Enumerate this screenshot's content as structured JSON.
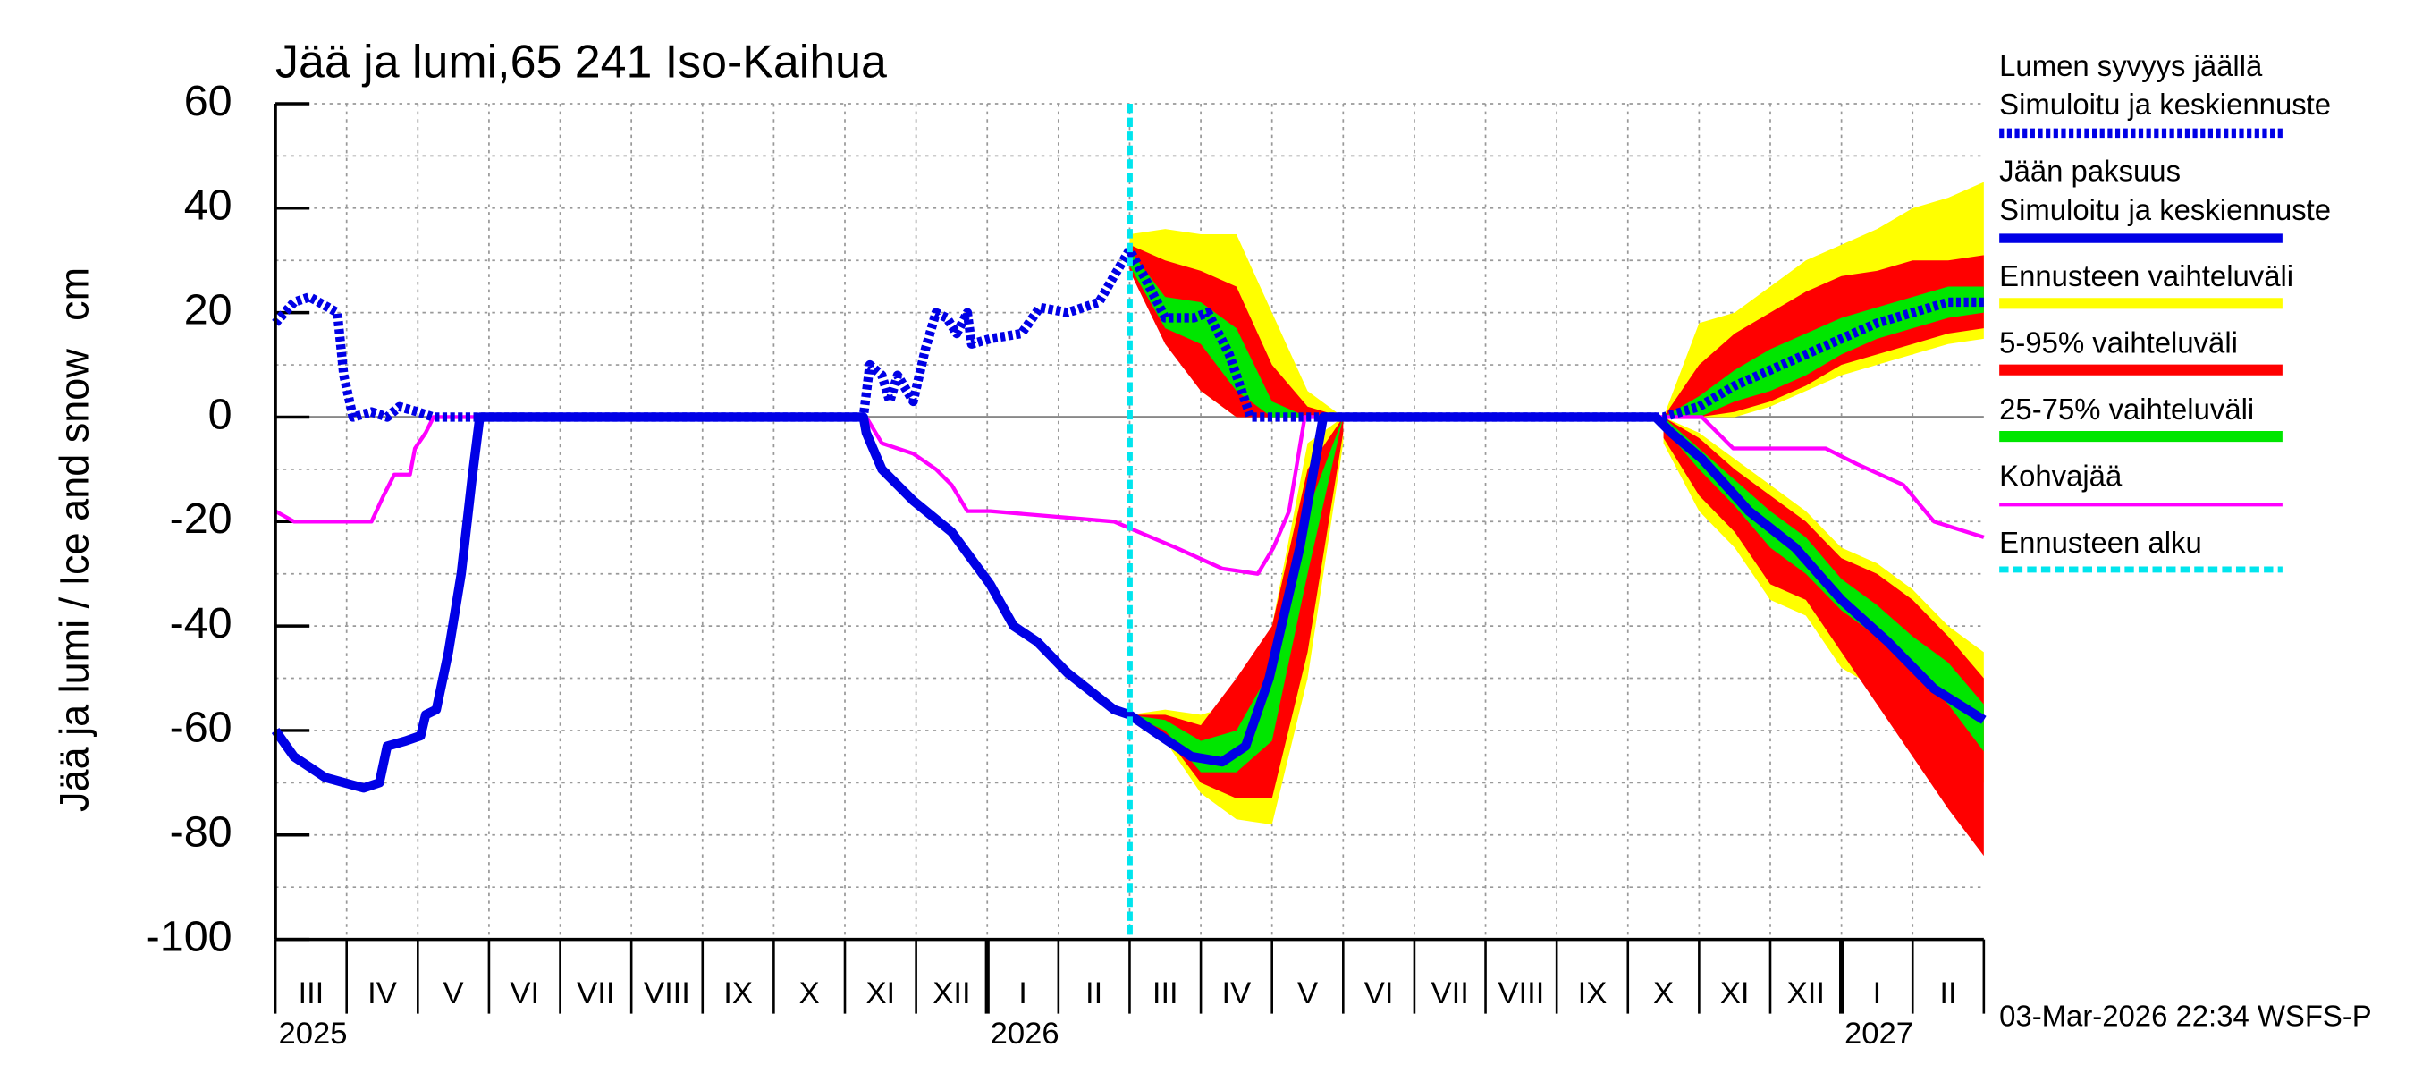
{
  "chart_data": {
    "type": "line",
    "title": "Jää ja lumi,65 241 Iso-Kaihua",
    "ylabel": "Jää ja lumi / Ice and snow",
    "yunit": "cm",
    "months": [
      "III",
      "IV",
      "V",
      "VI",
      "VII",
      "VIII",
      "IX",
      "X",
      "XI",
      "XII",
      "I",
      "II",
      "III",
      "IV",
      "V",
      "VI",
      "VII",
      "VIII",
      "IX",
      "X",
      "XI",
      "XII",
      "I",
      "II"
    ],
    "years": [
      "2025",
      "2026",
      "2027"
    ],
    "xlim": [
      0,
      24
    ],
    "ylim": [
      -100,
      60
    ],
    "yticks": [
      -100,
      -80,
      -60,
      -40,
      -20,
      0,
      20,
      40,
      60
    ],
    "y_minor_ticks": [
      -90,
      -70,
      -50,
      -30,
      -10,
      10,
      30,
      50
    ],
    "grid": true,
    "legend": "right",
    "timestamp": "03-Mar-2026 22:34 WSFS-P",
    "series": [
      {
        "name": "Lumen syvyys jäällä",
        "subname": "Simuloitu ja keskiennuste",
        "color": "#0000e6",
        "style": "dotted",
        "x": [
          0,
          0.26,
          0.48,
          0.74,
          0.87,
          0.96,
          1.09,
          1.35,
          1.57,
          1.74,
          2,
          2.22,
          8.26,
          8.35,
          8.52,
          8.63,
          8.74,
          8.96,
          9.13,
          9.28,
          9.43,
          9.57,
          9.72,
          9.78,
          10.04,
          10.48,
          10.74,
          11.13,
          11.57,
          11.78,
          12,
          12.2,
          12.5,
          12.9,
          13.1,
          13.4,
          13.7,
          19.5,
          20,
          20.5,
          21,
          21.5,
          22,
          22.5,
          23,
          23.5,
          24
        ],
        "values": [
          18,
          22,
          23,
          21,
          20,
          8,
          0,
          1,
          0,
          2,
          1,
          0,
          0,
          10,
          8,
          3,
          8,
          3,
          13,
          20,
          19,
          16,
          20,
          14,
          15,
          16,
          21,
          20,
          22,
          27,
          32,
          27,
          19,
          19,
          20,
          12,
          0,
          0,
          2,
          6,
          9,
          12,
          15,
          18,
          20,
          22,
          22
        ]
      },
      {
        "name": "Jään paksuus",
        "subname": "Simuloitu ja keskiennuste",
        "color": "#0000e6",
        "style": "solid",
        "x": [
          0,
          0.26,
          0.7,
          1.24,
          1.46,
          1.57,
          1.83,
          2.04,
          2.11,
          2.26,
          2.43,
          2.61,
          2.76,
          2.87,
          8.26,
          8.3,
          8.52,
          8.96,
          9.5,
          10.04,
          10.37,
          10.7,
          11.13,
          11.78,
          12,
          12.43,
          12.87,
          13.3,
          13.63,
          13.96,
          14.39,
          14.72,
          19.39,
          19.61,
          20.04,
          20.7,
          21.35,
          22,
          22.65,
          23.3,
          24
        ],
        "values": [
          -60,
          -65,
          -69,
          -71,
          -70,
          -63,
          -62,
          -61,
          -57,
          -56,
          -45,
          -30,
          -12,
          0,
          0,
          -3,
          -10,
          -16,
          -22,
          -32,
          -40,
          -43,
          -49,
          -56,
          -57,
          -61,
          -65,
          -66,
          -63,
          -50,
          -25,
          0,
          0,
          -3,
          -8,
          -18,
          -25,
          -35,
          -43,
          -52,
          -58
        ]
      },
      {
        "name": "Kohvajää",
        "color": "#ff00ff",
        "style": "thin",
        "x": [
          0,
          0.26,
          1.35,
          1.52,
          1.67,
          1.89,
          1.96,
          2.11,
          2.22,
          8.3,
          8.52,
          8.96,
          9.28,
          9.5,
          9.72,
          10.04,
          11.78,
          12.65,
          13.3,
          13.8,
          14.02,
          14.24,
          14.46,
          20.04,
          20.48,
          21.78,
          22.22,
          22.87,
          23.3,
          24
        ],
        "values": [
          -18,
          -20,
          -20,
          -15,
          -11,
          -11,
          -6,
          -3,
          0,
          0,
          -5,
          -7,
          -10,
          -13,
          -18,
          -18,
          -20,
          -25,
          -29,
          -30,
          -25,
          -18,
          0,
          0,
          -6,
          -6,
          -9,
          -13,
          -20,
          -23
        ]
      }
    ],
    "bands": [
      {
        "name": "Ennusteen vaihteluväli",
        "color": "#ffff00",
        "pieces": [
          {
            "x": [
              12,
              12.5,
              13,
              13.5,
              14,
              14.5,
              15
            ],
            "low": [
              30,
              15,
              5,
              0,
              0,
              0,
              0
            ],
            "high": [
              35,
              36,
              35,
              35,
              20,
              5,
              0
            ]
          },
          {
            "x": [
              19.5,
              20,
              20.5,
              21,
              21.5,
              22,
              22.5,
              23,
              23.5,
              24
            ],
            "low": [
              0,
              0,
              0,
              2,
              5,
              8,
              10,
              12,
              14,
              15
            ],
            "high": [
              0,
              18,
              20,
              25,
              30,
              33,
              36,
              40,
              42,
              45
            ]
          },
          {
            "x": [
              12,
              12.5,
              13,
              13.5,
              14,
              14.5,
              15
            ],
            "low": [
              -57,
              -62,
              -72,
              -77,
              -78,
              -50,
              -5
            ],
            "high": [
              -57,
              -56,
              -57,
              -55,
              -40,
              -5,
              0
            ]
          },
          {
            "x": [
              19.5,
              20,
              20.5,
              21,
              21.5,
              22,
              22.5,
              23,
              23.5,
              24
            ],
            "low": [
              -5,
              -18,
              -25,
              -35,
              -38,
              -48,
              -52,
              -60,
              -67,
              -70
            ],
            "high": [
              0,
              -3,
              -8,
              -13,
              -18,
              -25,
              -28,
              -33,
              -40,
              -45
            ]
          }
        ]
      },
      {
        "name": "5-95% vaihteluväli",
        "color": "#ff0000",
        "pieces": [
          {
            "x": [
              12,
              12.5,
              13,
              13.5,
              14,
              14.5,
              15
            ],
            "low": [
              28,
              14,
              5,
              0,
              0,
              0,
              0
            ],
            "high": [
              33,
              30,
              28,
              25,
              10,
              2,
              0
            ]
          },
          {
            "x": [
              19.5,
              20,
              20.5,
              21,
              21.5,
              22,
              22.5,
              23,
              23.5,
              24
            ],
            "low": [
              0,
              0,
              1,
              3,
              6,
              10,
              12,
              14,
              16,
              17
            ],
            "high": [
              0,
              10,
              16,
              20,
              24,
              27,
              28,
              30,
              30,
              31
            ]
          },
          {
            "x": [
              12,
              12.5,
              13,
              13.5,
              14,
              14.5,
              15
            ],
            "low": [
              -57,
              -61,
              -70,
              -73,
              -73,
              -45,
              -3
            ],
            "high": [
              -57,
              -57,
              -59,
              -50,
              -40,
              -10,
              0
            ]
          },
          {
            "x": [
              19.5,
              20,
              20.5,
              21,
              21.5,
              22,
              22.5,
              23,
              23.5,
              24
            ],
            "low": [
              -4,
              -15,
              -22,
              -32,
              -35,
              -45,
              -55,
              -65,
              -75,
              -84
            ],
            "high": [
              0,
              -4,
              -10,
              -15,
              -20,
              -27,
              -30,
              -35,
              -42,
              -50
            ]
          }
        ]
      },
      {
        "name": "25-75% vaihteluväli",
        "color": "#00e600",
        "pieces": [
          {
            "x": [
              12,
              12.5,
              13,
              13.5,
              14,
              14.5,
              15
            ],
            "low": [
              29,
              17,
              14,
              5,
              0,
              0,
              0
            ],
            "high": [
              32,
              23,
              22,
              17,
              3,
              0,
              0
            ]
          },
          {
            "x": [
              19.5,
              20,
              20.5,
              21,
              21.5,
              22,
              22.5,
              23,
              23.5,
              24
            ],
            "low": [
              0,
              0,
              3,
              5,
              8,
              12,
              15,
              17,
              19,
              20
            ],
            "high": [
              0,
              4,
              9,
              13,
              16,
              19,
              21,
              23,
              25,
              25
            ]
          },
          {
            "x": [
              12,
              12.5,
              13,
              13.5,
              14,
              14.5,
              15
            ],
            "low": [
              -57,
              -60,
              -68,
              -68,
              -62,
              -30,
              0
            ],
            "high": [
              -57,
              -58,
              -62,
              -60,
              -48,
              -18,
              0
            ]
          },
          {
            "x": [
              19.5,
              20,
              20.5,
              21,
              21.5,
              22,
              22.5,
              23,
              23.5,
              24
            ],
            "low": [
              -2,
              -10,
              -17,
              -25,
              -30,
              -37,
              -42,
              -48,
              -55,
              -64
            ],
            "high": [
              0,
              -6,
              -12,
              -18,
              -23,
              -31,
              -36,
              -42,
              -47,
              -55
            ]
          }
        ]
      }
    ],
    "forecast_start": {
      "name": "Ennusteen alku",
      "color": "#00e5ee",
      "x": 12
    }
  }
}
